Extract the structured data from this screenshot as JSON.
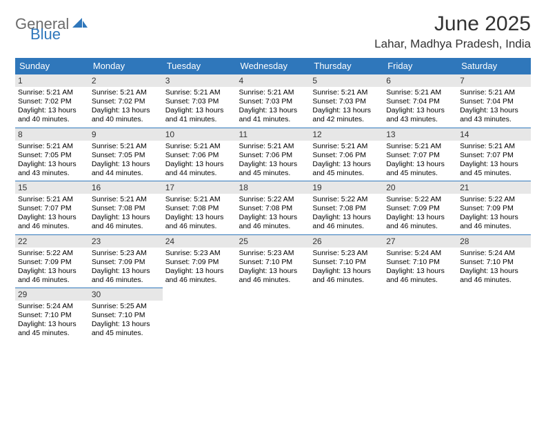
{
  "logo": {
    "word1": "General",
    "word2": "Blue"
  },
  "title": "June 2025",
  "location": "Lahar, Madhya Pradesh, India",
  "colors": {
    "accent": "#2f77bb",
    "daynum_bg": "#e7e7e7",
    "text": "#000000",
    "title": "#333333",
    "logo_gray": "#6b6b6b"
  },
  "daysOfWeek": [
    "Sunday",
    "Monday",
    "Tuesday",
    "Wednesday",
    "Thursday",
    "Friday",
    "Saturday"
  ],
  "weeks": [
    [
      {
        "n": "1",
        "sr": "Sunrise: 5:21 AM",
        "ss": "Sunset: 7:02 PM",
        "dl1": "Daylight: 13 hours",
        "dl2": "and 40 minutes."
      },
      {
        "n": "2",
        "sr": "Sunrise: 5:21 AM",
        "ss": "Sunset: 7:02 PM",
        "dl1": "Daylight: 13 hours",
        "dl2": "and 40 minutes."
      },
      {
        "n": "3",
        "sr": "Sunrise: 5:21 AM",
        "ss": "Sunset: 7:03 PM",
        "dl1": "Daylight: 13 hours",
        "dl2": "and 41 minutes."
      },
      {
        "n": "4",
        "sr": "Sunrise: 5:21 AM",
        "ss": "Sunset: 7:03 PM",
        "dl1": "Daylight: 13 hours",
        "dl2": "and 41 minutes."
      },
      {
        "n": "5",
        "sr": "Sunrise: 5:21 AM",
        "ss": "Sunset: 7:03 PM",
        "dl1": "Daylight: 13 hours",
        "dl2": "and 42 minutes."
      },
      {
        "n": "6",
        "sr": "Sunrise: 5:21 AM",
        "ss": "Sunset: 7:04 PM",
        "dl1": "Daylight: 13 hours",
        "dl2": "and 43 minutes."
      },
      {
        "n": "7",
        "sr": "Sunrise: 5:21 AM",
        "ss": "Sunset: 7:04 PM",
        "dl1": "Daylight: 13 hours",
        "dl2": "and 43 minutes."
      }
    ],
    [
      {
        "n": "8",
        "sr": "Sunrise: 5:21 AM",
        "ss": "Sunset: 7:05 PM",
        "dl1": "Daylight: 13 hours",
        "dl2": "and 43 minutes."
      },
      {
        "n": "9",
        "sr": "Sunrise: 5:21 AM",
        "ss": "Sunset: 7:05 PM",
        "dl1": "Daylight: 13 hours",
        "dl2": "and 44 minutes."
      },
      {
        "n": "10",
        "sr": "Sunrise: 5:21 AM",
        "ss": "Sunset: 7:06 PM",
        "dl1": "Daylight: 13 hours",
        "dl2": "and 44 minutes."
      },
      {
        "n": "11",
        "sr": "Sunrise: 5:21 AM",
        "ss": "Sunset: 7:06 PM",
        "dl1": "Daylight: 13 hours",
        "dl2": "and 45 minutes."
      },
      {
        "n": "12",
        "sr": "Sunrise: 5:21 AM",
        "ss": "Sunset: 7:06 PM",
        "dl1": "Daylight: 13 hours",
        "dl2": "and 45 minutes."
      },
      {
        "n": "13",
        "sr": "Sunrise: 5:21 AM",
        "ss": "Sunset: 7:07 PM",
        "dl1": "Daylight: 13 hours",
        "dl2": "and 45 minutes."
      },
      {
        "n": "14",
        "sr": "Sunrise: 5:21 AM",
        "ss": "Sunset: 7:07 PM",
        "dl1": "Daylight: 13 hours",
        "dl2": "and 45 minutes."
      }
    ],
    [
      {
        "n": "15",
        "sr": "Sunrise: 5:21 AM",
        "ss": "Sunset: 7:07 PM",
        "dl1": "Daylight: 13 hours",
        "dl2": "and 46 minutes."
      },
      {
        "n": "16",
        "sr": "Sunrise: 5:21 AM",
        "ss": "Sunset: 7:08 PM",
        "dl1": "Daylight: 13 hours",
        "dl2": "and 46 minutes."
      },
      {
        "n": "17",
        "sr": "Sunrise: 5:21 AM",
        "ss": "Sunset: 7:08 PM",
        "dl1": "Daylight: 13 hours",
        "dl2": "and 46 minutes."
      },
      {
        "n": "18",
        "sr": "Sunrise: 5:22 AM",
        "ss": "Sunset: 7:08 PM",
        "dl1": "Daylight: 13 hours",
        "dl2": "and 46 minutes."
      },
      {
        "n": "19",
        "sr": "Sunrise: 5:22 AM",
        "ss": "Sunset: 7:08 PM",
        "dl1": "Daylight: 13 hours",
        "dl2": "and 46 minutes."
      },
      {
        "n": "20",
        "sr": "Sunrise: 5:22 AM",
        "ss": "Sunset: 7:09 PM",
        "dl1": "Daylight: 13 hours",
        "dl2": "and 46 minutes."
      },
      {
        "n": "21",
        "sr": "Sunrise: 5:22 AM",
        "ss": "Sunset: 7:09 PM",
        "dl1": "Daylight: 13 hours",
        "dl2": "and 46 minutes."
      }
    ],
    [
      {
        "n": "22",
        "sr": "Sunrise: 5:22 AM",
        "ss": "Sunset: 7:09 PM",
        "dl1": "Daylight: 13 hours",
        "dl2": "and 46 minutes."
      },
      {
        "n": "23",
        "sr": "Sunrise: 5:23 AM",
        "ss": "Sunset: 7:09 PM",
        "dl1": "Daylight: 13 hours",
        "dl2": "and 46 minutes."
      },
      {
        "n": "24",
        "sr": "Sunrise: 5:23 AM",
        "ss": "Sunset: 7:09 PM",
        "dl1": "Daylight: 13 hours",
        "dl2": "and 46 minutes."
      },
      {
        "n": "25",
        "sr": "Sunrise: 5:23 AM",
        "ss": "Sunset: 7:10 PM",
        "dl1": "Daylight: 13 hours",
        "dl2": "and 46 minutes."
      },
      {
        "n": "26",
        "sr": "Sunrise: 5:23 AM",
        "ss": "Sunset: 7:10 PM",
        "dl1": "Daylight: 13 hours",
        "dl2": "and 46 minutes."
      },
      {
        "n": "27",
        "sr": "Sunrise: 5:24 AM",
        "ss": "Sunset: 7:10 PM",
        "dl1": "Daylight: 13 hours",
        "dl2": "and 46 minutes."
      },
      {
        "n": "28",
        "sr": "Sunrise: 5:24 AM",
        "ss": "Sunset: 7:10 PM",
        "dl1": "Daylight: 13 hours",
        "dl2": "and 46 minutes."
      }
    ],
    [
      {
        "n": "29",
        "sr": "Sunrise: 5:24 AM",
        "ss": "Sunset: 7:10 PM",
        "dl1": "Daylight: 13 hours",
        "dl2": "and 45 minutes."
      },
      {
        "n": "30",
        "sr": "Sunrise: 5:25 AM",
        "ss": "Sunset: 7:10 PM",
        "dl1": "Daylight: 13 hours",
        "dl2": "and 45 minutes."
      },
      null,
      null,
      null,
      null,
      null
    ]
  ]
}
